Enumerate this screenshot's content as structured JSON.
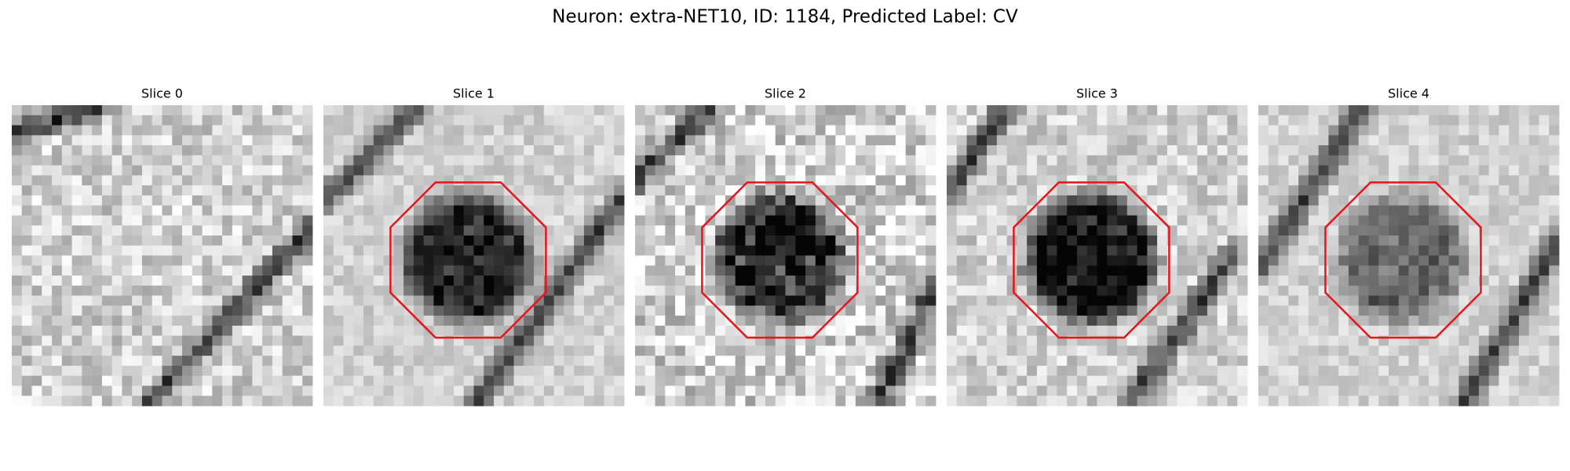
{
  "title": "Neuron: extra-NET10, ID: 1184, Predicted Label: CV",
  "panels": [
    {
      "title": "Slice 0"
    },
    {
      "title": "Slice 1"
    },
    {
      "title": "Slice 2"
    },
    {
      "title": "Slice 3"
    },
    {
      "title": "Slice 4"
    }
  ]
}
